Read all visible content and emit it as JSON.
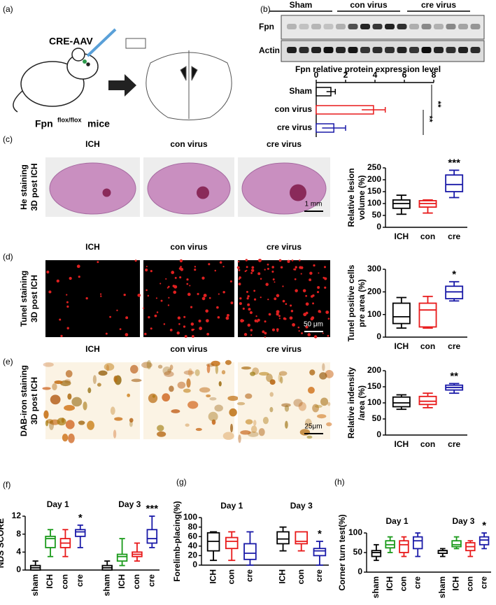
{
  "panel_labels": [
    "(a)",
    "(b)",
    "(c)",
    "(d)",
    "(e)",
    "(f)",
    "(g)",
    "(h)"
  ],
  "panel_a": {
    "title": "CRE-AAV",
    "mouse_label": "Fpn",
    "superscript": "flox/flox",
    "mouse_suffix": "mice"
  },
  "blot": {
    "groups": [
      "Sham",
      "con virus",
      "cre virus"
    ],
    "rows": [
      "Fpn",
      "Actin"
    ]
  },
  "image_rows": [
    {
      "label": [
        "He staining",
        "3D post ICH"
      ],
      "columns": [
        "ICH",
        "con virus",
        "cre virus"
      ],
      "scale": "1 mm"
    },
    {
      "label": [
        "Tunel staining",
        "3D post ICH"
      ],
      "columns": [
        "ICH",
        "con virus",
        "cre virus"
      ],
      "scale": "50 μm"
    },
    {
      "label": [
        "DAB-iron staining",
        "3D post ICH"
      ],
      "columns": [
        "ICH",
        "con virus",
        "cre virus"
      ],
      "scale": "25μm"
    }
  ],
  "chart_data": [
    {
      "type": "hbar",
      "title": "Fpn relative protein expression level",
      "categories": [
        "Sham",
        "con virus",
        "cre virus"
      ],
      "values": [
        1,
        3.9,
        1.2
      ],
      "errors": [
        0.3,
        0.8,
        0.8
      ],
      "colors": [
        "#000000",
        "#e8191a",
        "#1a1aa8"
      ],
      "xlim": [
        0,
        8
      ],
      "xticks": [
        0,
        2,
        4,
        6,
        8
      ],
      "annotations": [
        "**",
        "**"
      ]
    },
    {
      "type": "box",
      "ylabel": [
        "Relative lesion",
        "volume (%)"
      ],
      "categories": [
        "ICH",
        "con",
        "cre"
      ],
      "min": [
        55,
        60,
        125
      ],
      "q1": [
        80,
        85,
        150
      ],
      "median": [
        100,
        100,
        180
      ],
      "q3": [
        115,
        112,
        220
      ],
      "max": [
        135,
        115,
        240
      ],
      "colors": [
        "#000000",
        "#e8191a",
        "#1a1aa8"
      ],
      "ylim": [
        0,
        250
      ],
      "yticks": [
        0,
        50,
        100,
        150,
        200,
        250
      ],
      "significance": [
        null,
        null,
        "***"
      ]
    },
    {
      "type": "box",
      "ylabel": [
        "Tunel positive cells",
        "pre area (%)"
      ],
      "categories": [
        "ICH",
        "con",
        "cre"
      ],
      "min": [
        40,
        40,
        160
      ],
      "q1": [
        60,
        45,
        170
      ],
      "median": [
        90,
        120,
        200
      ],
      "q3": [
        150,
        150,
        225
      ],
      "max": [
        175,
        180,
        245
      ],
      "colors": [
        "#000000",
        "#e8191a",
        "#1a1aa8"
      ],
      "ylim": [
        0,
        300
      ],
      "yticks": [
        0,
        100,
        200,
        300
      ],
      "significance": [
        null,
        null,
        "*"
      ]
    },
    {
      "type": "box",
      "ylabel": [
        "Relative indensity",
        "/area (%)"
      ],
      "categories": [
        "ICH",
        "con",
        "cre"
      ],
      "min": [
        80,
        85,
        130
      ],
      "q1": [
        88,
        95,
        140
      ],
      "median": [
        100,
        105,
        148
      ],
      "q3": [
        118,
        120,
        155
      ],
      "max": [
        125,
        130,
        160
      ],
      "colors": [
        "#000000",
        "#e8191a",
        "#1a1aa8"
      ],
      "ylim": [
        0,
        200
      ],
      "yticks": [
        0,
        50,
        100,
        150,
        200
      ],
      "significance": [
        null,
        null,
        "**"
      ]
    },
    {
      "type": "box",
      "ylabel": [
        "NDS SCORE"
      ],
      "groups": [
        "Day 1",
        "Day 3"
      ],
      "categories": [
        "sham",
        "ICH",
        "con",
        "cre",
        "sham",
        "ICH",
        "con",
        "cre"
      ],
      "min": [
        0,
        3,
        3,
        5,
        0,
        1,
        2,
        5
      ],
      "q1": [
        0,
        5,
        5,
        7.5,
        0,
        2,
        3,
        6
      ],
      "median": [
        0.5,
        7,
        6,
        8.5,
        0.5,
        3,
        3.5,
        7
      ],
      "q3": [
        1,
        7.5,
        7,
        9,
        1,
        3.5,
        4,
        9
      ],
      "max": [
        2,
        9,
        9,
        10,
        2,
        7,
        6,
        12
      ],
      "colors": [
        "#000000",
        "#1a9a1a",
        "#e8191a",
        "#1a1aa8",
        "#000000",
        "#1a9a1a",
        "#e8191a",
        "#1a1aa8"
      ],
      "ylim": [
        0,
        12
      ],
      "yticks": [
        0,
        4,
        8,
        12
      ],
      "significance": [
        null,
        null,
        null,
        "*",
        null,
        null,
        null,
        "***"
      ]
    },
    {
      "type": "box",
      "ylabel": [
        "Forelimb-placing(%)"
      ],
      "groups": [
        "Day 1",
        "Day 3"
      ],
      "categories": [
        "ICH",
        "con",
        "cre",
        "ICH",
        "con",
        "cre"
      ],
      "min": [
        10,
        10,
        0,
        30,
        30,
        0
      ],
      "q1": [
        30,
        35,
        12,
        45,
        45,
        20
      ],
      "median": [
        50,
        50,
        25,
        55,
        50,
        30
      ],
      "q3": [
        68,
        58,
        45,
        70,
        70,
        35
      ],
      "max": [
        70,
        70,
        70,
        80,
        70,
        50
      ],
      "colors": [
        "#000000",
        "#e8191a",
        "#1a1aa8",
        "#000000",
        "#e8191a",
        "#1a1aa8"
      ],
      "ylim": [
        0,
        100
      ],
      "yticks": [
        0,
        20,
        40,
        60,
        80,
        100
      ],
      "significance": [
        null,
        null,
        null,
        null,
        null,
        "*"
      ]
    },
    {
      "type": "box",
      "ylabel": [
        "Corner turn test(%)"
      ],
      "groups": [
        "Day 1",
        "Day 3"
      ],
      "categories": [
        "sham",
        "ICH",
        "con",
        "cre",
        "sham",
        "ICH",
        "con",
        "cre"
      ],
      "min": [
        30,
        50,
        40,
        40,
        40,
        60,
        40,
        60
      ],
      "q1": [
        40,
        62,
        50,
        60,
        48,
        65,
        55,
        70
      ],
      "median": [
        50,
        70,
        70,
        80,
        55,
        70,
        65,
        82
      ],
      "q3": [
        55,
        80,
        80,
        90,
        55,
        80,
        75,
        90
      ],
      "max": [
        70,
        90,
        90,
        100,
        60,
        90,
        80,
        100
      ],
      "colors": [
        "#000000",
        "#1a9a1a",
        "#e8191a",
        "#1a1aa8",
        "#000000",
        "#1a9a1a",
        "#e8191a",
        "#1a1aa8"
      ],
      "ylim": [
        0,
        100
      ],
      "yticks": [
        0,
        50,
        100
      ],
      "significance": [
        null,
        null,
        null,
        null,
        null,
        null,
        null,
        "*"
      ]
    }
  ]
}
